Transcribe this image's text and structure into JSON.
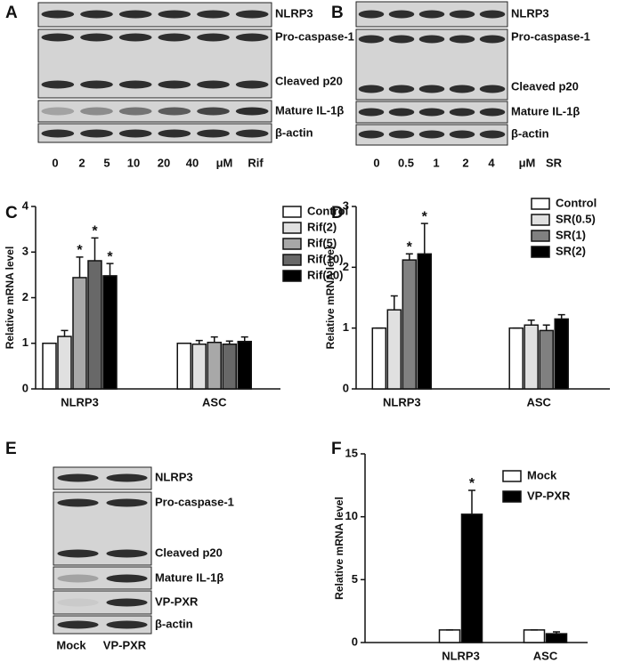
{
  "panel_labels": [
    "A",
    "B",
    "C",
    "D",
    "E",
    "F"
  ],
  "blots": [
    {
      "boxes": [
        [
          "NLRP3"
        ],
        [
          "Pro-caspase-1",
          "Cleaved p20"
        ],
        [
          "Mature IL-1β"
        ],
        [
          "β-actin"
        ]
      ],
      "lanes": [
        "0",
        "2",
        "5",
        "10",
        "20",
        "40"
      ],
      "unit": "μM",
      "treatment": "Rif"
    },
    {
      "boxes": [
        [
          "NLRP3"
        ],
        [
          "Pro-caspase-1",
          "Cleaved p20"
        ],
        [
          "Mature IL-1β"
        ],
        [
          "β-actin"
        ]
      ],
      "lanes": [
        "0",
        "0.5",
        "1",
        "2",
        "4"
      ],
      "unit": "μM",
      "treatment": "SR"
    },
    {
      "boxes": [
        [
          "NLRP3"
        ],
        [
          "Pro-caspase-1",
          "Cleaved p20"
        ],
        [
          "Mature IL-1β"
        ],
        [
          "VP-PXR"
        ],
        [
          "β-actin"
        ]
      ],
      "lanes": [
        "Mock",
        "VP-PXR"
      ]
    }
  ],
  "chart_data": [
    {
      "type": "bar",
      "ylabel": "Relative mRNA level",
      "categories": [
        "NLRP3",
        "ASC"
      ],
      "ylim": [
        0,
        4
      ],
      "yticks": [
        0,
        1,
        2,
        3,
        4
      ],
      "series": [
        {
          "name": "Control",
          "color": "#ffffff",
          "values": [
            1,
            1
          ],
          "errors": [
            0,
            0
          ],
          "significance": [
            null,
            null
          ]
        },
        {
          "name": "Rif(2)",
          "color": "#e0e0e0",
          "values": [
            1.15,
            0.98
          ],
          "errors": [
            0.13,
            0.08
          ],
          "significance": [
            null,
            null
          ]
        },
        {
          "name": "Rif(5)",
          "color": "#a8a8a8",
          "values": [
            2.44,
            1.02
          ],
          "errors": [
            0.45,
            0.12
          ],
          "significance": [
            "*",
            null
          ]
        },
        {
          "name": "Rif(10)",
          "color": "#686868",
          "values": [
            2.81,
            0.98
          ],
          "errors": [
            0.5,
            0.07
          ],
          "significance": [
            "*",
            null
          ]
        },
        {
          "name": "Rif(20)",
          "color": "#000000",
          "values": [
            2.48,
            1.04
          ],
          "errors": [
            0.27,
            0.1
          ],
          "significance": [
            "*",
            null
          ]
        }
      ]
    },
    {
      "type": "bar",
      "ylabel": "Relative mRNA level",
      "categories": [
        "NLRP3",
        "ASC"
      ],
      "ylim": [
        0,
        3
      ],
      "yticks": [
        0,
        1,
        2,
        3
      ],
      "series": [
        {
          "name": "Control",
          "color": "#ffffff",
          "values": [
            1,
            1
          ],
          "errors": [
            0,
            0
          ],
          "significance": [
            null,
            null
          ]
        },
        {
          "name": "SR(0.5)",
          "color": "#e0e0e0",
          "values": [
            1.3,
            1.05
          ],
          "errors": [
            0.23,
            0.08
          ],
          "significance": [
            null,
            null
          ]
        },
        {
          "name": "SR(1)",
          "color": "#808080",
          "values": [
            2.12,
            0.96
          ],
          "errors": [
            0.1,
            0.09
          ],
          "significance": [
            "*",
            null
          ]
        },
        {
          "name": "SR(2)",
          "color": "#000000",
          "values": [
            2.22,
            1.15
          ],
          "errors": [
            0.5,
            0.07
          ],
          "significance": [
            "*",
            null
          ]
        }
      ]
    },
    {
      "type": "bar",
      "ylabel": "Relative mRNA level",
      "categories": [
        "NLRP3",
        "ASC"
      ],
      "ylim": [
        0,
        15
      ],
      "yticks": [
        0,
        5,
        10,
        15
      ],
      "series": [
        {
          "name": "Mock",
          "color": "#ffffff",
          "values": [
            1,
            1
          ],
          "errors": [
            0,
            0
          ],
          "significance": [
            null,
            null
          ]
        },
        {
          "name": "VP-PXR",
          "color": "#000000",
          "values": [
            10.2,
            0.7
          ],
          "errors": [
            1.9,
            0.15
          ],
          "significance": [
            "*",
            null
          ]
        }
      ]
    }
  ]
}
